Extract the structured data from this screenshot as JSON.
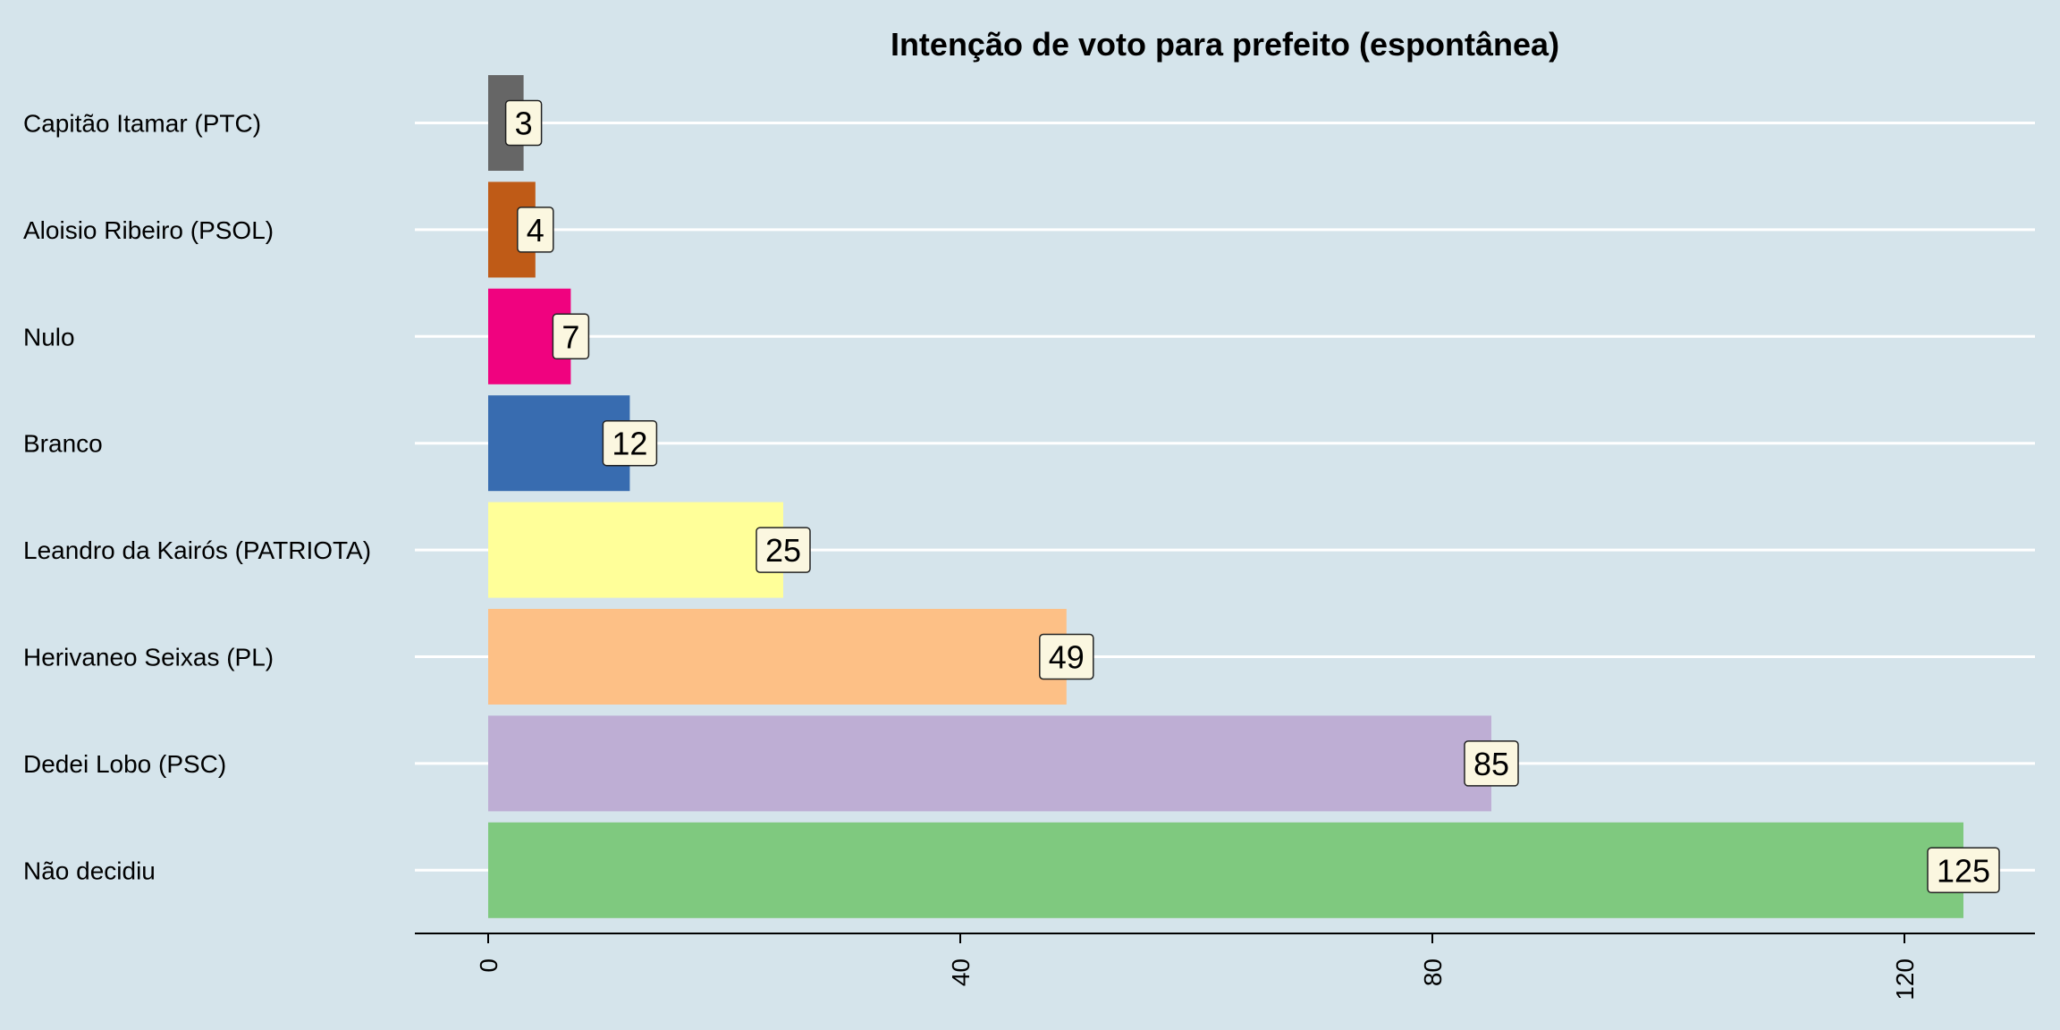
{
  "chart_data": {
    "type": "bar",
    "orientation": "horizontal",
    "title": "Intenção de voto para prefeito (espontânea)",
    "xlabel": "",
    "ylabel": "",
    "categories": [
      "Capitão Itamar (PTC)",
      "Aloisio Ribeiro (PSOL)",
      "Nulo",
      "Branco",
      "Leandro da Kairós (PATRIOTA)",
      "Herivaneo Seixas (PL)",
      "Dedei Lobo (PSC)",
      "Não decidiu"
    ],
    "values": [
      3,
      4,
      7,
      12,
      25,
      49,
      85,
      125
    ],
    "colors": [
      "#666666",
      "#bf5b17",
      "#f0027f",
      "#386cb0",
      "#ffff99",
      "#fdc086",
      "#beaed4",
      "#7fc97f"
    ],
    "xlim": [
      0,
      130
    ],
    "xticks": [
      0,
      40,
      80,
      120
    ],
    "grid": true,
    "legend": "none",
    "background": "#d5e4eb",
    "label_box_fill": "#fbf7e0"
  }
}
